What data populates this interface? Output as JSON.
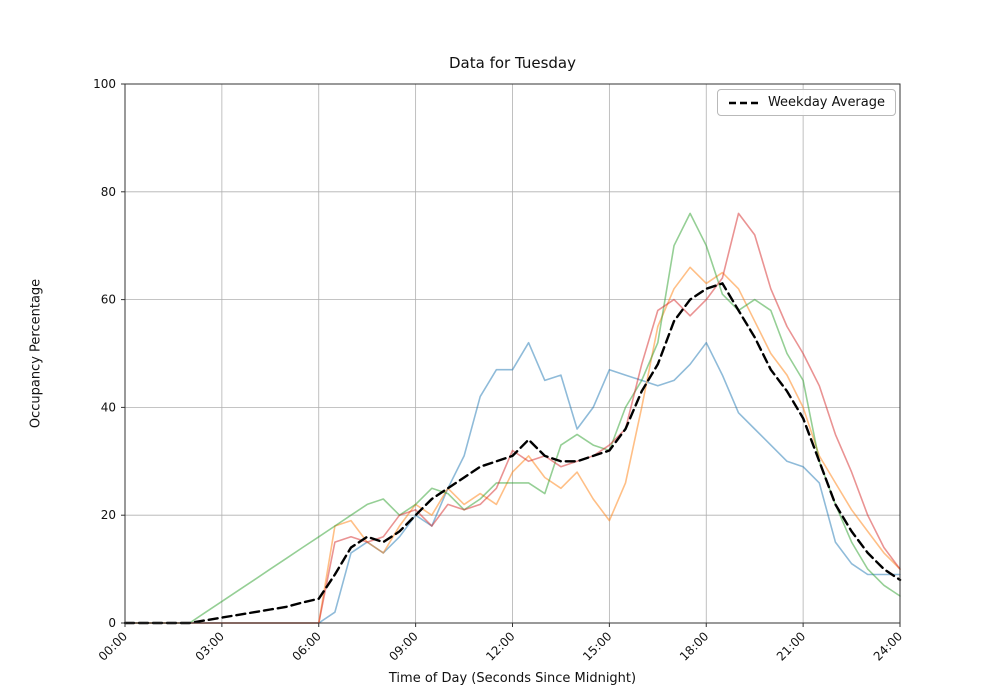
{
  "figure": {
    "title": "Data for Tuesday",
    "xlabel": "Time of Day (Seconds Since Midnight)",
    "ylabel": "Occupancy Percentage"
  },
  "legend": {
    "entries": [
      {
        "label": "Weekday Average",
        "color": "#000000",
        "style": "dashed"
      }
    ],
    "position": "upper right"
  },
  "chart_data": {
    "type": "line",
    "title": "Data for Tuesday",
    "xlabel": "Time of Day (Seconds Since Midnight)",
    "ylabel": "Occupancy Percentage",
    "x_unit": "hours",
    "xlim": [
      0,
      24
    ],
    "ylim": [
      0,
      100
    ],
    "grid": true,
    "legend_position": "upper right",
    "xticks": {
      "values": [
        0,
        3,
        6,
        9,
        12,
        15,
        18,
        21,
        24
      ],
      "labels": [
        "00:00",
        "03:00",
        "06:00",
        "09:00",
        "12:00",
        "15:00",
        "18:00",
        "21:00",
        "24:00"
      ]
    },
    "yticks": {
      "values": [
        0,
        20,
        40,
        60,
        80,
        100
      ],
      "labels": [
        "0",
        "20",
        "40",
        "60",
        "80",
        "100"
      ]
    },
    "x": [
      0,
      0.5,
      1,
      1.5,
      2,
      2.5,
      3,
      3.5,
      4,
      4.5,
      5,
      5.5,
      6,
      6.5,
      7,
      7.5,
      8,
      8.5,
      9,
      9.5,
      10,
      10.5,
      11,
      11.5,
      12,
      12.5,
      13,
      13.5,
      14,
      14.5,
      15,
      15.5,
      16,
      16.5,
      17,
      17.5,
      18,
      18.5,
      19,
      19.5,
      20,
      20.5,
      21,
      21.5,
      22,
      22.5,
      23,
      23.5,
      24
    ],
    "series": [
      {
        "name": "blue-line",
        "color": "#1f77b4",
        "alpha": 0.5,
        "width": 1.6,
        "dash": null,
        "in_legend": false,
        "values": [
          0,
          0,
          0,
          0,
          0,
          0,
          0,
          0,
          0,
          0,
          0,
          0,
          0,
          2,
          13,
          15,
          13,
          16,
          20,
          18,
          25,
          31,
          42,
          47,
          47,
          52,
          45,
          46,
          36,
          40,
          47,
          46,
          45,
          44,
          45,
          48,
          52,
          46,
          39,
          36,
          33,
          30,
          29,
          26,
          15,
          11,
          9,
          9,
          9
        ]
      },
      {
        "name": "orange-line",
        "color": "#ff7f0e",
        "alpha": 0.5,
        "width": 1.6,
        "dash": null,
        "in_legend": false,
        "values": [
          0,
          0,
          0,
          0,
          0,
          0,
          0,
          0,
          0,
          0,
          0,
          0,
          0,
          18,
          19,
          15,
          13,
          18,
          22,
          20,
          25,
          22,
          24,
          22,
          28,
          31,
          27,
          25,
          28,
          23,
          19,
          26,
          40,
          55,
          62,
          66,
          63,
          65,
          62,
          56,
          50,
          46,
          40,
          31,
          26,
          21,
          17,
          13,
          10
        ]
      },
      {
        "name": "green-line",
        "color": "#2ca02c",
        "alpha": 0.5,
        "width": 1.6,
        "dash": null,
        "in_legend": false,
        "values": [
          0,
          0,
          0,
          0,
          0,
          2,
          4,
          6,
          8,
          10,
          12,
          14,
          16,
          18,
          20,
          22,
          23,
          20,
          22,
          25,
          24,
          21,
          23,
          26,
          26,
          26,
          24,
          33,
          35,
          33,
          32,
          40,
          45,
          52,
          70,
          76,
          70,
          61,
          58,
          60,
          58,
          50,
          45,
          30,
          22,
          15,
          10,
          7,
          5
        ]
      },
      {
        "name": "red-line",
        "color": "#d62728",
        "alpha": 0.5,
        "width": 1.6,
        "dash": null,
        "in_legend": false,
        "values": [
          0,
          0,
          0,
          0,
          0,
          0,
          0,
          0,
          0,
          0,
          0,
          0,
          0,
          15,
          16,
          15,
          16,
          20,
          21,
          18,
          22,
          21,
          22,
          25,
          32,
          30,
          31,
          29,
          30,
          31,
          33,
          36,
          48,
          58,
          60,
          57,
          60,
          64,
          76,
          72,
          62,
          55,
          50,
          44,
          35,
          28,
          20,
          14,
          10
        ]
      },
      {
        "name": "Weekday Average",
        "color": "#000000",
        "alpha": 1,
        "width": 2.4,
        "dash": "dashed",
        "in_legend": true,
        "values": [
          0,
          0,
          0,
          0,
          0,
          0.5,
          1,
          1.5,
          2,
          2.5,
          3,
          3.8,
          4.5,
          9,
          14,
          16,
          15,
          17,
          20,
          23,
          25,
          27,
          29,
          30,
          31,
          34,
          31,
          30,
          30,
          31,
          32,
          36,
          43,
          48,
          56,
          60,
          62,
          63,
          58,
          53,
          47,
          43,
          38,
          30,
          22,
          17,
          13,
          10,
          8
        ]
      }
    ]
  },
  "style": {
    "grid_color": "#b0b0b0",
    "spine_color": "#333333",
    "tick_label_color": "#111111",
    "background": "#ffffff"
  }
}
